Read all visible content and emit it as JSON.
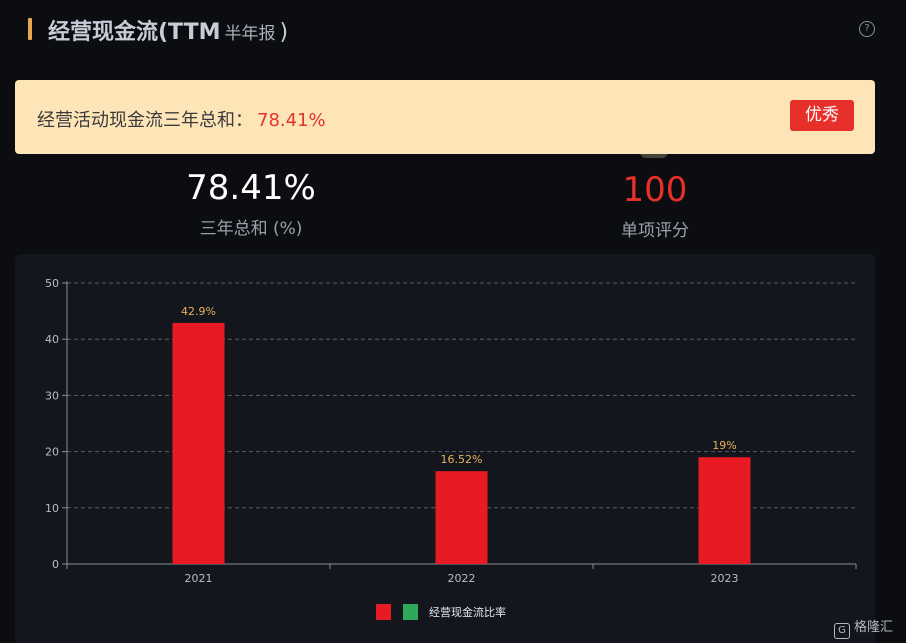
{
  "header": {
    "title": "经营现金流(TTM",
    "period": "半年报",
    "title_close": ")",
    "help_icon": "question-circle-icon"
  },
  "banner": {
    "label": "经营活动现金流三年总和：",
    "value": "78.41%",
    "badge": "优秀"
  },
  "stats": {
    "total": {
      "value": "78.41%",
      "label": "三年总和 (%)"
    },
    "score": {
      "value": "100",
      "label": "单项评分"
    }
  },
  "legend": {
    "label": "经营现金流比率"
  },
  "watermark": {
    "icon_text": "G",
    "text": "格隆汇"
  },
  "colors": {
    "bar": "#e81b24",
    "legend_alt": "#2ea85a",
    "value_label": "#e8b25a",
    "alert": "#e8302a"
  },
  "chart_data": {
    "type": "bar",
    "categories": [
      "2021",
      "2022",
      "2023"
    ],
    "values": [
      42.9,
      16.52,
      19
    ],
    "data_labels": [
      "42.9%",
      "16.52%",
      "19%"
    ],
    "yticks": [
      "0",
      "10",
      "20",
      "30",
      "40",
      "50"
    ],
    "ylim": [
      0,
      50
    ],
    "grid": true,
    "legend": "bottom-center"
  }
}
